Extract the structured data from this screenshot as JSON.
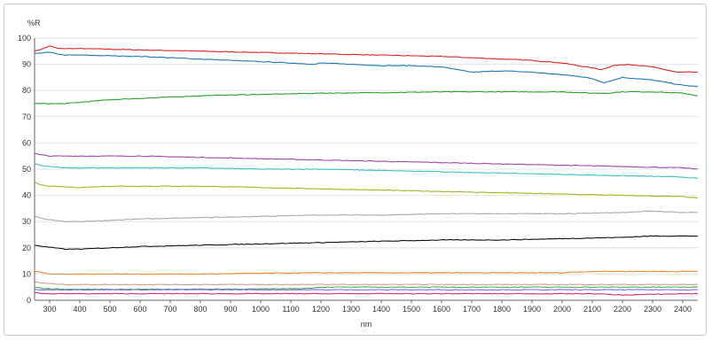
{
  "chart_data": {
    "type": "line",
    "title": "",
    "xlabel": "nm",
    "ylabel": "%R",
    "xlim": [
      250,
      2450
    ],
    "ylim": [
      0,
      100
    ],
    "x_ticks": [
      300,
      400,
      500,
      600,
      700,
      800,
      900,
      1000,
      1100,
      1200,
      1300,
      1400,
      1500,
      1600,
      1700,
      1800,
      1900,
      2000,
      2100,
      2200,
      2300,
      2400
    ],
    "y_ticks": [
      0,
      10,
      20,
      30,
      40,
      50,
      60,
      70,
      80,
      90,
      100
    ],
    "grid": {
      "horizontal": true,
      "vertical": false
    },
    "legend": "none",
    "series": [
      {
        "color": "#d62728",
        "x": [
          250,
          280,
          300,
          330,
          400,
          600,
          800,
          1000,
          1200,
          1400,
          1600,
          1700,
          1800,
          1900,
          2000,
          2080,
          2130,
          2170,
          2220,
          2300,
          2380,
          2450
        ],
        "y": [
          95,
          96,
          97,
          96,
          96,
          95.5,
          95,
          94.5,
          94,
          93.5,
          93,
          92.5,
          92,
          91.5,
          90.5,
          89,
          88,
          89.5,
          90,
          89,
          87,
          87
        ]
      },
      {
        "color": "#1f77b4",
        "x": [
          250,
          280,
          300,
          350,
          400,
          600,
          800,
          1000,
          1100,
          1180,
          1200,
          1300,
          1400,
          1500,
          1600,
          1650,
          1700,
          1800,
          1900,
          1950,
          2000,
          2050,
          2100,
          2140,
          2200,
          2300,
          2400,
          2450
        ],
        "y": [
          94,
          94.5,
          94.5,
          93.5,
          93.5,
          93,
          92,
          91,
          90.5,
          90,
          90.5,
          90,
          89.5,
          89.5,
          89,
          88,
          87,
          87.5,
          87,
          86.5,
          86,
          85.5,
          84.5,
          83,
          85,
          84,
          82,
          81.5
        ]
      },
      {
        "color": "#2ca02c",
        "x": [
          250,
          300,
          350,
          400,
          500,
          600,
          700,
          800,
          900,
          1000,
          1200,
          1400,
          1600,
          1800,
          2000,
          2100,
          2150,
          2200,
          2300,
          2400,
          2450
        ],
        "y": [
          75,
          75,
          75,
          75.5,
          76.5,
          77,
          77.5,
          78,
          78.3,
          78.5,
          79,
          79.2,
          79.5,
          79.5,
          79.5,
          79,
          79,
          79.5,
          79.5,
          79,
          78
        ]
      },
      {
        "color": "#a843a8",
        "x": [
          250,
          270,
          300,
          400,
          600,
          800,
          1000,
          1200,
          1400,
          1600,
          1800,
          2000,
          2200,
          2400,
          2450
        ],
        "y": [
          56,
          55.5,
          55,
          55,
          55,
          54.5,
          54,
          53.5,
          53,
          52.5,
          52,
          51.5,
          51,
          50.5,
          50
        ]
      },
      {
        "color": "#3fbfbf",
        "x": [
          250,
          270,
          300,
          350,
          400,
          600,
          800,
          1000,
          1200,
          1400,
          1600,
          1800,
          2000,
          2200,
          2400,
          2450
        ],
        "y": [
          52,
          51.5,
          51,
          50.5,
          50.5,
          50.5,
          50.5,
          50,
          50,
          49.5,
          49,
          48.5,
          48,
          47.5,
          47,
          46.5
        ]
      },
      {
        "color": "#9ab822",
        "x": [
          250,
          270,
          300,
          400,
          500,
          600,
          700,
          800,
          1000,
          1200,
          1400,
          1600,
          1800,
          2000,
          2200,
          2400,
          2450
        ],
        "y": [
          45,
          44,
          43.5,
          43,
          43.5,
          43.5,
          43.5,
          43.5,
          43,
          42.5,
          42,
          41.5,
          41,
          40.5,
          40,
          39.5,
          39
        ]
      },
      {
        "color": "#aaaaaa",
        "x": [
          250,
          280,
          350,
          400,
          500,
          600,
          800,
          1000,
          1200,
          1400,
          1600,
          1800,
          2000,
          2200,
          2300,
          2400,
          2450
        ],
        "y": [
          32,
          31,
          30,
          30,
          30.5,
          31,
          31.5,
          32,
          32.5,
          32.5,
          33,
          33,
          33,
          33.5,
          34,
          33.5,
          33.5
        ]
      },
      {
        "color": "#111111",
        "x": [
          250,
          280,
          350,
          400,
          500,
          600,
          800,
          1000,
          1200,
          1400,
          1600,
          1800,
          2000,
          2200,
          2300,
          2400,
          2450
        ],
        "y": [
          21,
          20.5,
          19.5,
          19.5,
          20,
          20.5,
          21,
          21.5,
          22,
          22.5,
          23,
          23,
          23.5,
          24,
          24.5,
          24.5,
          24.5
        ]
      },
      {
        "color": "#ee8833",
        "x": [
          250,
          280,
          300,
          400,
          600,
          800,
          1000,
          1200,
          1400,
          1600,
          1800,
          2000,
          2100,
          2200,
          2400,
          2450
        ],
        "y": [
          11,
          10.5,
          10,
          10,
          10,
          10,
          10.3,
          10.5,
          10.5,
          10.5,
          10.5,
          10.5,
          11,
          11,
          11,
          11
        ]
      },
      {
        "color": "#c8a090",
        "x": [
          250,
          280,
          350,
          600,
          1000,
          1150,
          1200,
          1400,
          1600,
          2000,
          2400,
          2450
        ],
        "y": [
          7,
          6.5,
          6,
          6,
          6,
          6,
          6,
          6,
          6,
          6,
          6,
          6
        ]
      },
      {
        "color": "#4caf50",
        "x": [
          250,
          280,
          350,
          600,
          1000,
          1150,
          1200,
          1400,
          1600,
          2000,
          2400,
          2450
        ],
        "y": [
          5,
          4.5,
          4.2,
          4.2,
          4.3,
          4.5,
          5,
          5,
          5,
          5,
          5,
          5
        ]
      },
      {
        "color": "#7b68ee",
        "x": [
          250,
          400,
          800,
          1200,
          1600,
          2000,
          2400,
          2450
        ],
        "y": [
          4,
          4,
          4,
          4,
          4,
          4,
          4,
          4
        ]
      },
      {
        "color": "#cc3366",
        "x": [
          250,
          280,
          350,
          600,
          1000,
          1400,
          1800,
          2100,
          2200,
          2400,
          2450
        ],
        "y": [
          3,
          2.5,
          2.5,
          2.5,
          2.5,
          2.5,
          2.5,
          2.5,
          2,
          2.5,
          2.5
        ]
      }
    ]
  }
}
